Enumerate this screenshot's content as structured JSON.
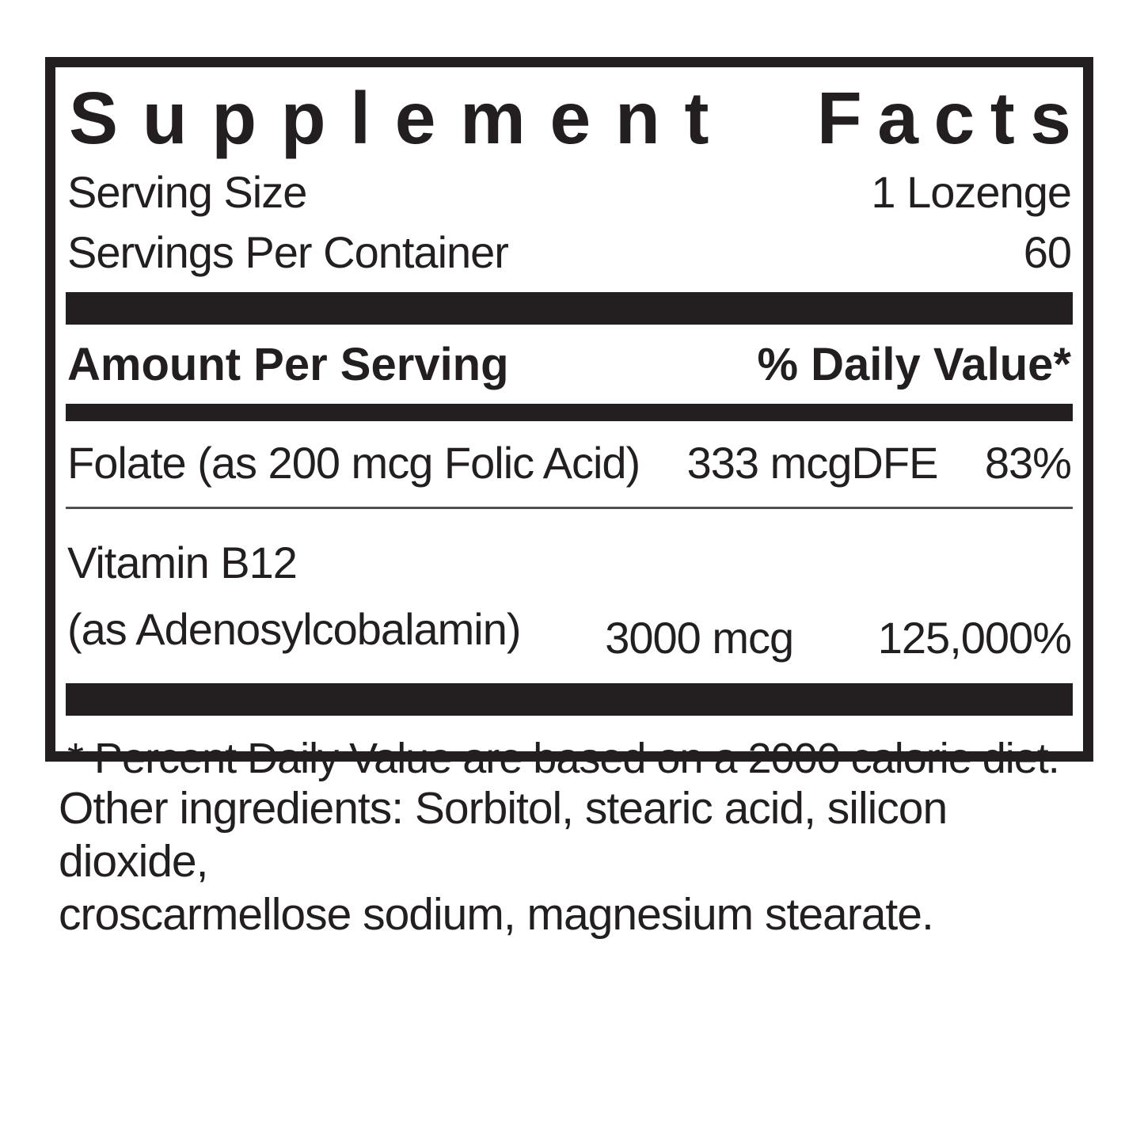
{
  "label": {
    "title": "Supplement Facts",
    "title_words": [
      "Supplement",
      "Facts"
    ],
    "serving": [
      {
        "name": "Serving Size",
        "value": "1 Lozenge"
      },
      {
        "name": "Servings Per Container",
        "value": "60"
      }
    ],
    "columns": {
      "amount_header": "Amount Per Serving",
      "dv_header": "% Daily Value*"
    },
    "rows": [
      {
        "name": "Folate (as 200 mcg Folic Acid)",
        "amount": "333 mcgDFE",
        "dv": "83%"
      },
      {
        "name_line1": "Vitamin B12",
        "name_line2": "(as Adenosylcobalamin)",
        "amount": "3000 mcg",
        "dv": "125,000%"
      }
    ],
    "footnote": "* Percent Daily Value are based on a 2000 calorie diet.",
    "other_ingredients": {
      "line1": "Other ingredients: Sorbitol, stearic acid, silicon dioxide,",
      "line2": "croscarmellose sodium, magnesium stearate."
    }
  },
  "colors": {
    "text": "#231f20",
    "bar": "#231f20",
    "rule": "#4f5052",
    "background": "#ffffff"
  }
}
